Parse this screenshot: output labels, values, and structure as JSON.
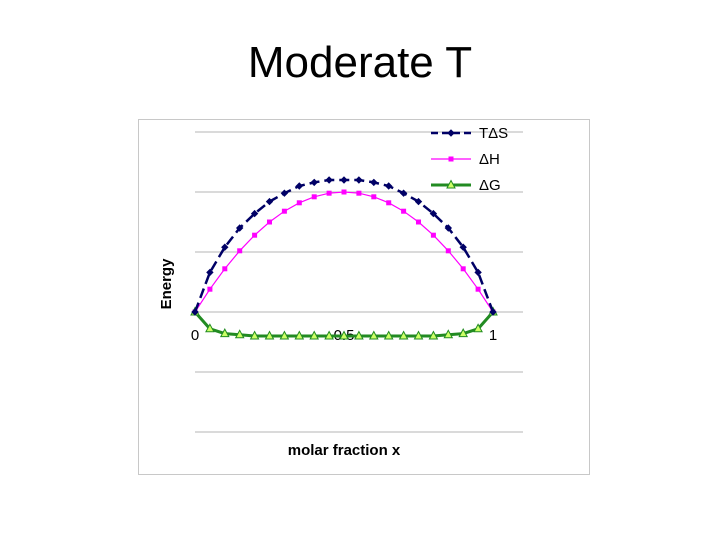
{
  "slide": {
    "title": "Moderate T"
  },
  "chart_data": {
    "type": "line",
    "title": "",
    "xlabel": "molar fraction x",
    "ylabel": "Energy",
    "xlim": [
      0,
      1
    ],
    "ylim": [
      -1.05,
      1.2
    ],
    "x_ticks": [
      "0",
      "0.5",
      "1"
    ],
    "grid": true,
    "legend_position": "top-right",
    "x": [
      0,
      0.05,
      0.1,
      0.15,
      0.2,
      0.25,
      0.3,
      0.35,
      0.4,
      0.45,
      0.5,
      0.55,
      0.6,
      0.65,
      0.7,
      0.75,
      0.8,
      0.85,
      0.9,
      0.95,
      1
    ],
    "series": [
      {
        "name": "TΔS",
        "color": "#000066",
        "line_style": "dashed",
        "marker": "diamond",
        "values": [
          0,
          0.33,
          0.54,
          0.7,
          0.82,
          0.92,
          0.99,
          1.05,
          1.08,
          1.1,
          1.1,
          1.1,
          1.08,
          1.05,
          0.99,
          0.92,
          0.82,
          0.7,
          0.54,
          0.33,
          0
        ]
      },
      {
        "name": "ΔH",
        "color": "#ff00ff",
        "line_style": "solid",
        "marker": "square",
        "values": [
          0,
          0.19,
          0.36,
          0.51,
          0.64,
          0.75,
          0.84,
          0.91,
          0.96,
          0.99,
          1.0,
          0.99,
          0.96,
          0.91,
          0.84,
          0.75,
          0.64,
          0.51,
          0.36,
          0.19,
          0
        ]
      },
      {
        "name": "ΔG",
        "color": "#228b22",
        "line_style": "solid",
        "marker": "triangle",
        "marker_fill": "#ccff66",
        "values": [
          0,
          -0.14,
          -0.18,
          -0.19,
          -0.2,
          -0.2,
          -0.2,
          -0.2,
          -0.2,
          -0.2,
          -0.2,
          -0.2,
          -0.2,
          -0.2,
          -0.2,
          -0.2,
          -0.2,
          -0.19,
          -0.18,
          -0.14,
          0
        ]
      }
    ]
  }
}
